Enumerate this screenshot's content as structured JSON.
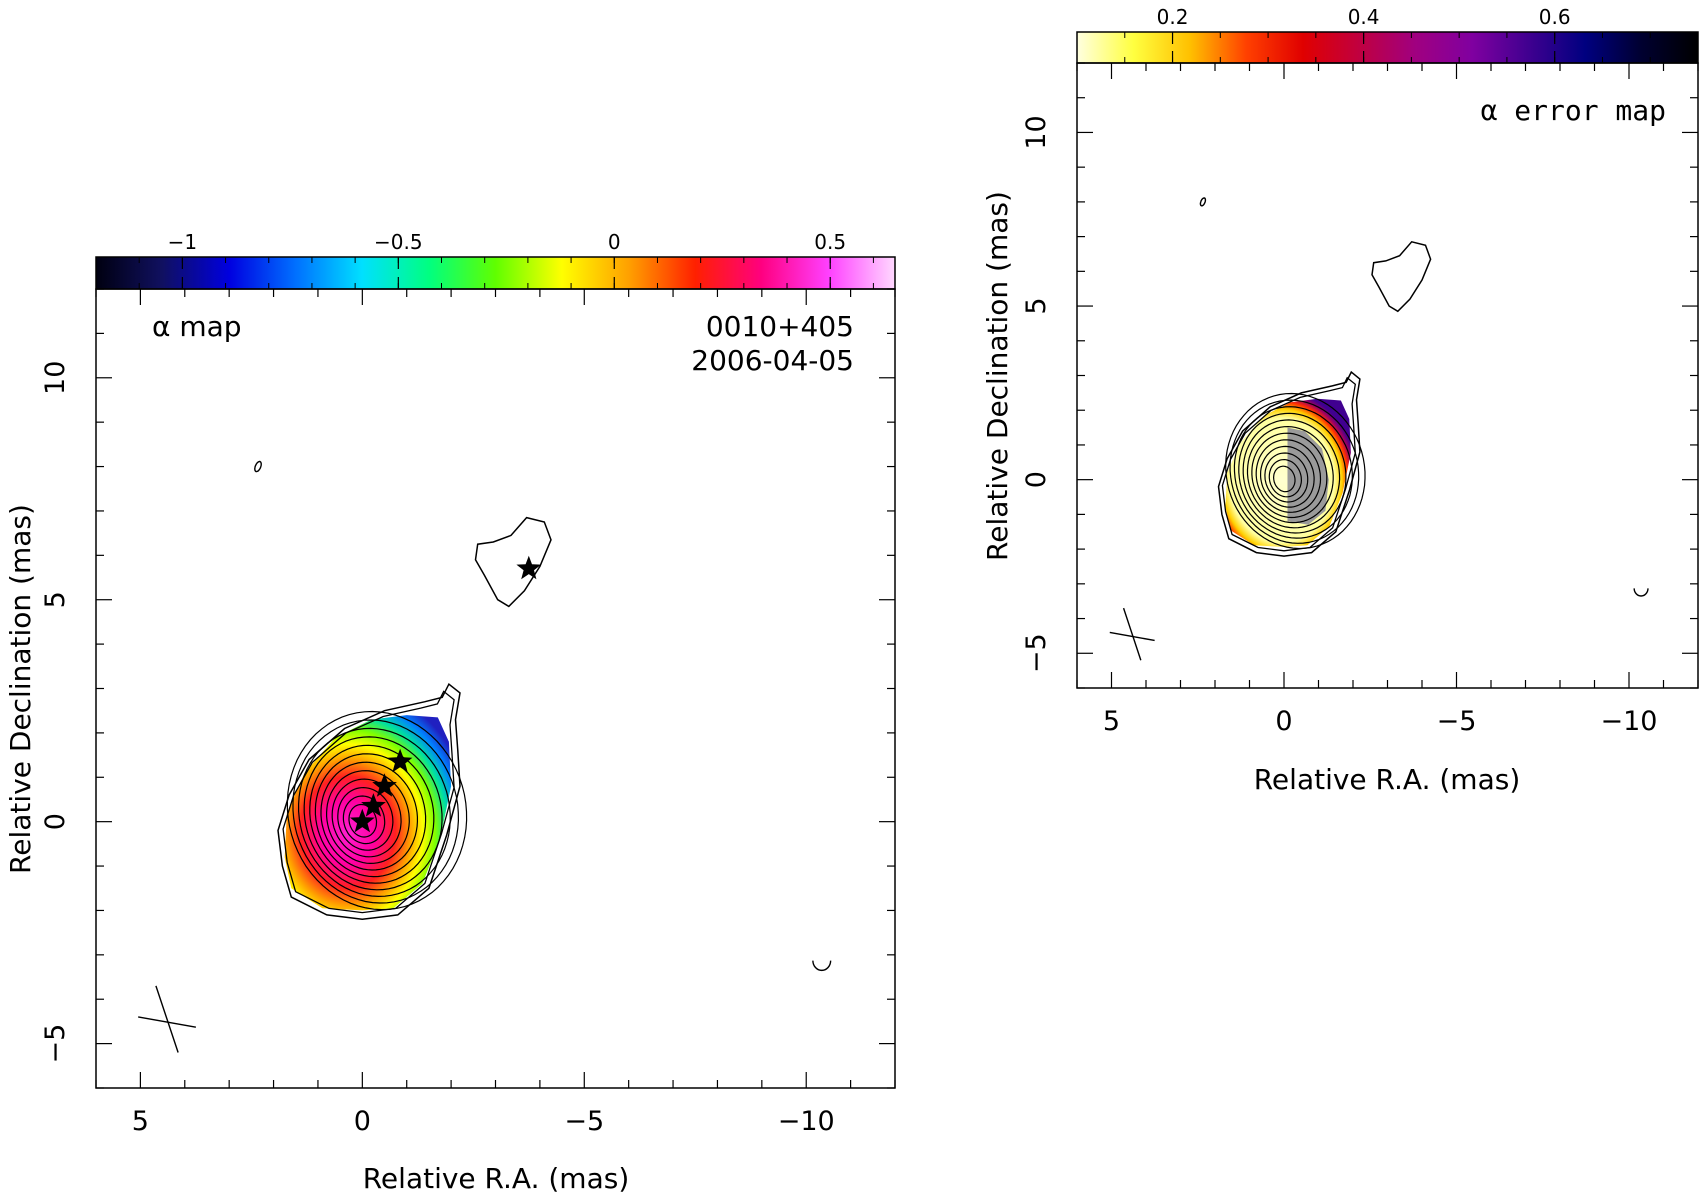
{
  "chart_data": [
    {
      "type": "heatmap",
      "name": "alpha-map",
      "title": "α map",
      "source": "0010+405",
      "date": "2006-04-05",
      "xlabel": "Relative R.A. (mas)",
      "ylabel": "Relative Declination (mas)",
      "xlim": [
        6,
        -12
      ],
      "ylim": [
        -6,
        12
      ],
      "x_ticks": [
        "5",
        "0",
        "−5",
        "−10"
      ],
      "y_ticks": [
        "−5",
        "0",
        "5",
        "10"
      ],
      "colorbar": {
        "range": [
          -1.2,
          0.65
        ],
        "ticks": [
          "−1",
          "−0.5",
          "0",
          "0.5"
        ],
        "palette": [
          "#000010",
          "#101060",
          "#0000e0",
          "#0070ff",
          "#00e0ff",
          "#00ff80",
          "#60ff00",
          "#ffff00",
          "#ffa000",
          "#ff2000",
          "#ff0080",
          "#ff40ff",
          "#ffd8ff"
        ]
      },
      "core_alpha": 0.55,
      "edge_alpha": -0.7,
      "components": [
        {
          "x": 0.0,
          "y": 0.0
        },
        {
          "x": -0.25,
          "y": 0.35
        },
        {
          "x": -0.5,
          "y": 0.8
        },
        {
          "x": -0.85,
          "y": 1.35
        },
        {
          "x": -3.75,
          "y": 5.7
        }
      ]
    },
    {
      "type": "heatmap",
      "name": "alpha-error-map",
      "title": "α error map",
      "xlabel": "Relative R.A. (mas)",
      "ylabel": "Relative Declination (mas)",
      "xlim": [
        6,
        -12
      ],
      "ylim": [
        -6,
        12
      ],
      "x_ticks": [
        "5",
        "0",
        "−5",
        "−10"
      ],
      "y_ticks": [
        "−5",
        "0",
        "5",
        "10"
      ],
      "colorbar": {
        "range": [
          0.1,
          0.75
        ],
        "ticks": [
          "0.2",
          "0.4",
          "0.6"
        ],
        "palette": [
          "#ffffe0",
          "#ffff40",
          "#ffc000",
          "#ff4000",
          "#e00000",
          "#c00040",
          "#a00080",
          "#8000a0",
          "#400090",
          "#000080",
          "#000030",
          "#000000"
        ]
      }
    }
  ]
}
